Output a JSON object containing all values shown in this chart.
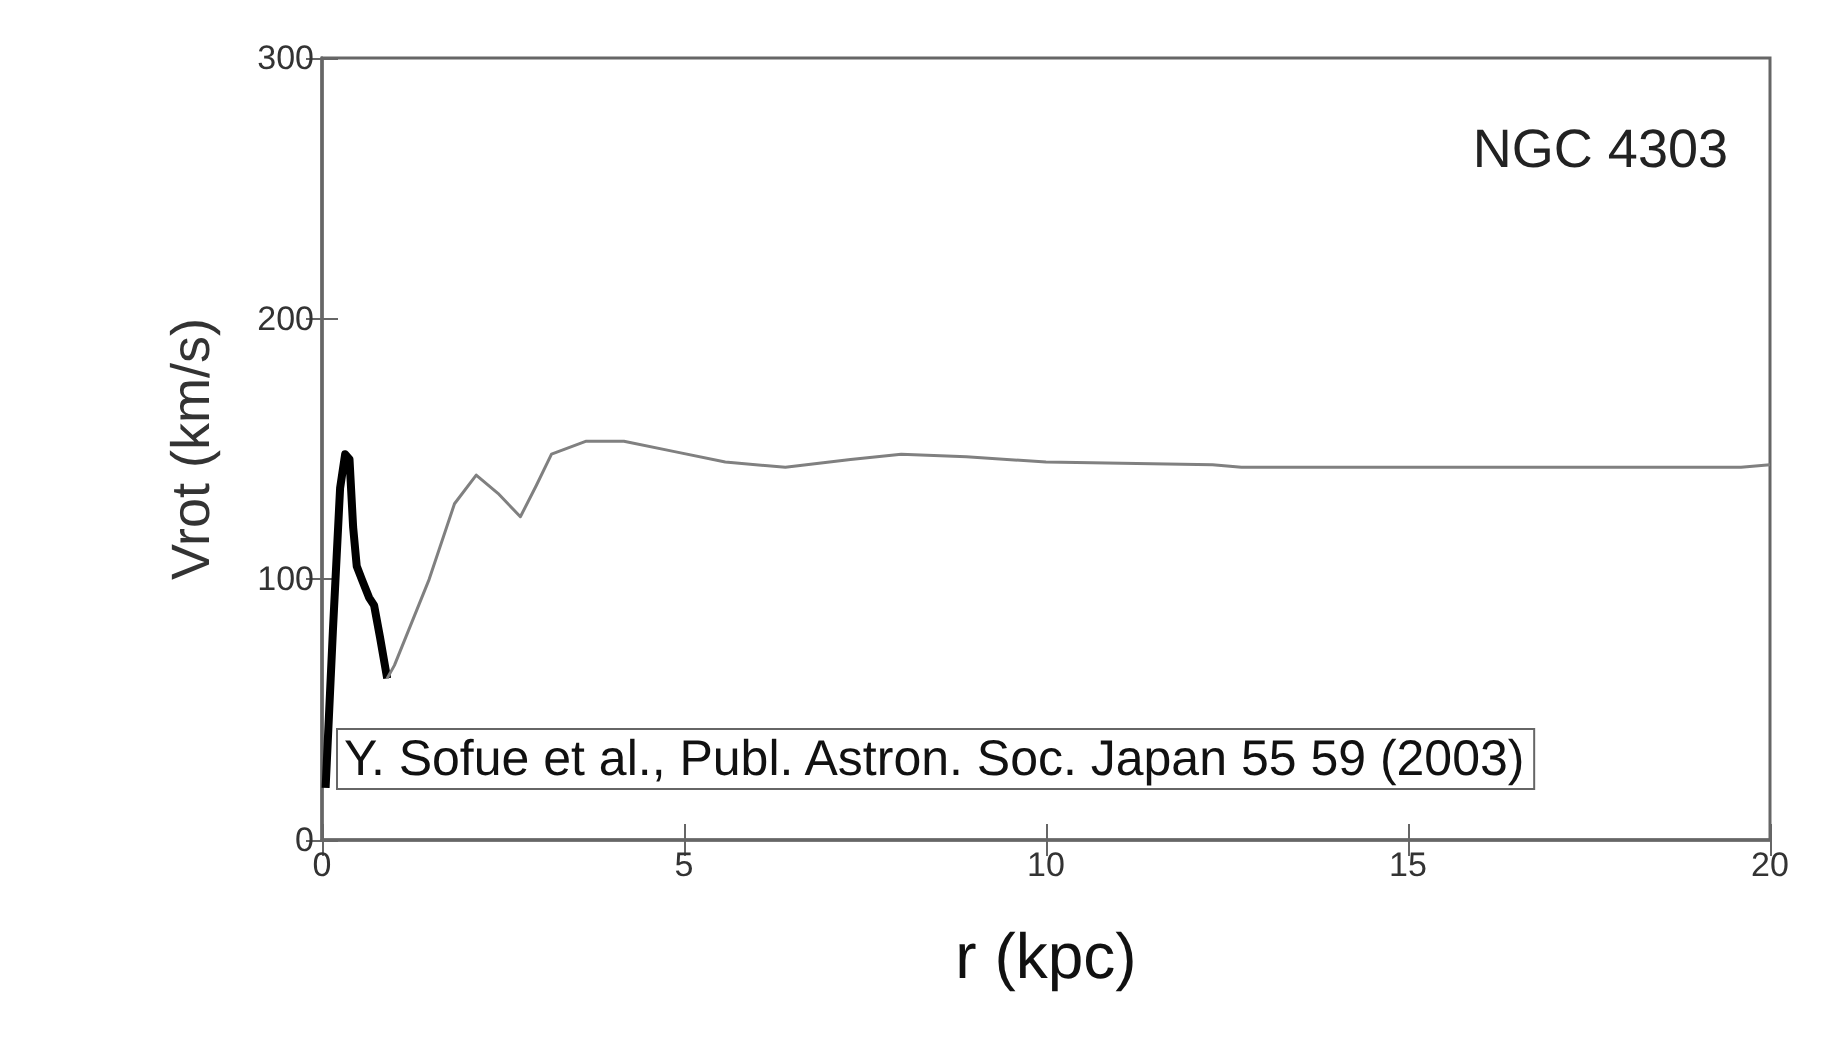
{
  "chart_data": {
    "type": "line",
    "title": "NGC 4303",
    "xlabel": "r (kpc)",
    "ylabel": "Vrot (km/s)",
    "annotations": [
      "Y. Sofue et al., Publ. Astron. Soc. Japan 55 59 (2003)"
    ],
    "xlim": [
      0,
      20
    ],
    "xticks": [
      0,
      5,
      10,
      15,
      20
    ],
    "ylim": [
      0,
      300
    ],
    "yticks": [
      0,
      100,
      200,
      300
    ],
    "grid": false,
    "marker": "none",
    "line_style": "solid",
    "series": [
      {
        "color": "#000000",
        "x": [
          0.05,
          0.15,
          0.25,
          0.32,
          0.38,
          0.43,
          0.48,
          0.55,
          0.65,
          0.72,
          0.8,
          0.9
        ],
        "values": [
          20,
          80,
          135,
          148,
          146,
          120,
          105,
          100,
          93,
          90,
          78,
          62
        ]
      },
      {
        "color": "#808080",
        "x": [
          0.9,
          1.0,
          1.48,
          1.83,
          2.13,
          2.43,
          2.74,
          2.96,
          3.17,
          3.65,
          4.17,
          4.87,
          5.57,
          6.4,
          7.3,
          8.0,
          8.9,
          10.0,
          12.3,
          12.7,
          19.6,
          20
        ],
        "values": [
          62,
          67,
          100,
          129,
          140,
          133,
          124,
          136,
          148,
          153,
          153,
          149,
          145,
          143,
          146,
          148,
          147,
          145,
          144,
          143,
          143,
          144
        ]
      }
    ]
  }
}
